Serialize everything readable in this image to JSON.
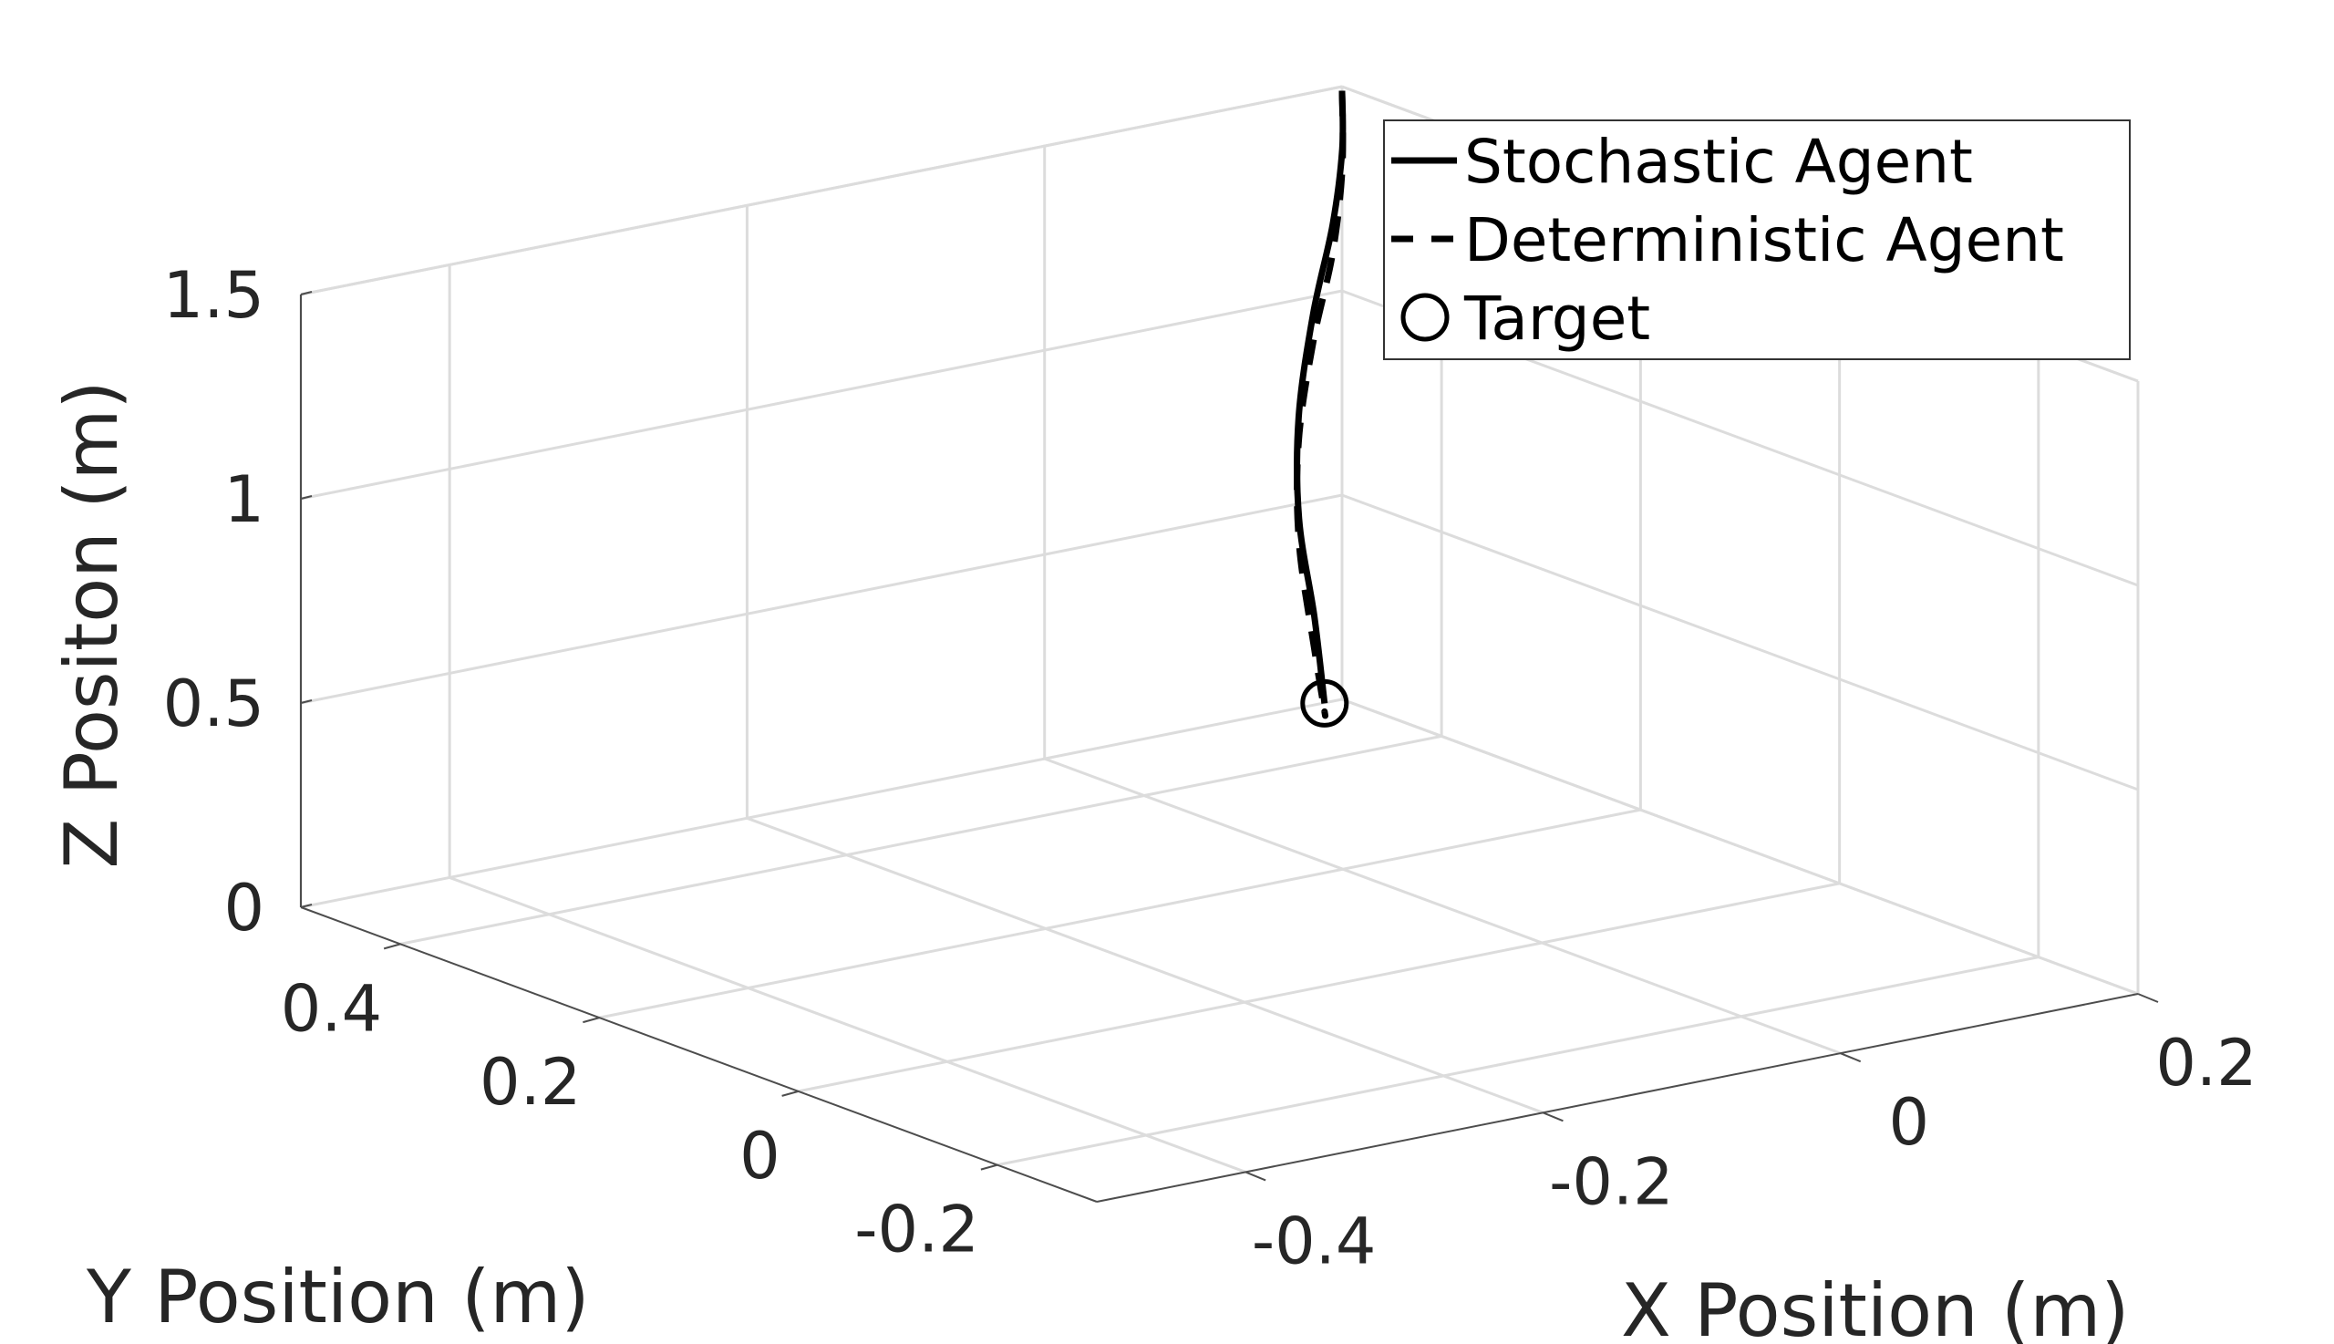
{
  "chart_data": {
    "type": "line",
    "subtype": "3d-line",
    "title": "",
    "xlabel": "X Position (m)",
    "ylabel": "Y Position (m)",
    "zlabel": "Z Positon (m)",
    "xlim": [
      -0.5,
      0.2
    ],
    "ylim": [
      -0.3,
      0.5
    ],
    "zlim": [
      0,
      1.5
    ],
    "xticks": [
      "-0.4",
      "-0.2",
      "0",
      "0.2"
    ],
    "yticks": [
      "-0.2",
      "0",
      "0.2",
      "0.4"
    ],
    "zticks": [
      "0",
      "0.5",
      "1",
      "1.5"
    ],
    "grid": true,
    "legend_position": "top-right",
    "series": [
      {
        "name": "Stochastic Agent",
        "style": "solid",
        "color": "#000000",
        "x": [
          0.2,
          0.16,
          0.1,
          0.02,
          -0.07,
          -0.15,
          -0.22,
          -0.28
        ],
        "y": [
          0.5,
          0.44,
          0.36,
          0.26,
          0.14,
          0.02,
          -0.1,
          -0.2
        ],
        "z": [
          1.49,
          1.43,
          1.36,
          1.29,
          1.21,
          1.13,
          1.05,
          0.97
        ]
      },
      {
        "name": "Deterministic Agent",
        "style": "dashed",
        "color": "#000000",
        "x": [
          0.2,
          0.16,
          0.1,
          0.02,
          -0.07,
          -0.15,
          -0.22,
          -0.26,
          -0.28
        ],
        "y": [
          0.5,
          0.44,
          0.36,
          0.26,
          0.14,
          0.02,
          -0.1,
          -0.17,
          -0.2
        ],
        "z": [
          1.49,
          1.38,
          1.29,
          1.22,
          1.15,
          1.07,
          0.97,
          0.91,
          0.95
        ]
      },
      {
        "name": "Target",
        "style": "marker-circle",
        "color": "#000000",
        "x": [
          -0.28
        ],
        "y": [
          -0.2
        ],
        "z": [
          0.97
        ]
      }
    ]
  }
}
